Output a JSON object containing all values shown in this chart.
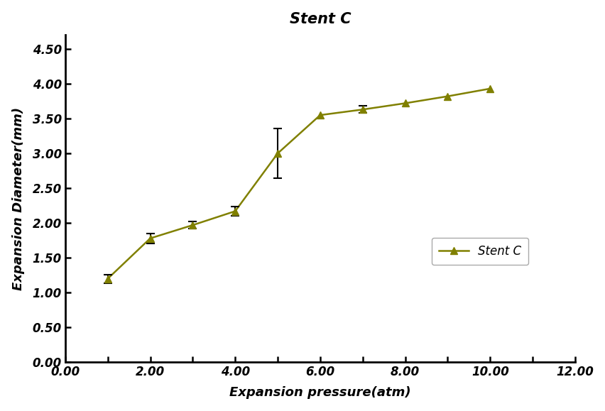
{
  "title": "Stent C",
  "xlabel": "Expansion pressure(atm)",
  "ylabel": "Expansion Diameter(mm)",
  "x": [
    1,
    2,
    3,
    4,
    5,
    6,
    7,
    8,
    9,
    10
  ],
  "y": [
    1.2,
    1.78,
    1.97,
    2.17,
    3.0,
    3.55,
    3.63,
    3.72,
    3.82,
    3.93
  ],
  "yerr": [
    0.06,
    0.07,
    0.05,
    0.07,
    0.36,
    0.0,
    0.05,
    0.0,
    0.0,
    0.0
  ],
  "line_color": "#808000",
  "marker": "^",
  "markersize": 7,
  "legend_label": "Stent C",
  "xlim": [
    0,
    12
  ],
  "ylim": [
    0,
    4.7
  ],
  "xticks": [
    0.0,
    1.0,
    2.0,
    3.0,
    4.0,
    5.0,
    6.0,
    7.0,
    8.0,
    9.0,
    10.0,
    11.0,
    12.0
  ],
  "xtick_labels": [
    "0.00",
    "",
    "2.00",
    "",
    "4.00",
    "",
    "6.00",
    "",
    "8.00",
    "",
    "10.00",
    "",
    "12.00"
  ],
  "yticks": [
    0.0,
    0.5,
    1.0,
    1.5,
    2.0,
    2.5,
    3.0,
    3.5,
    4.0,
    4.5
  ],
  "ytick_labels": [
    "0.00",
    "0.50",
    "1.00",
    "1.50",
    "2.00",
    "2.50",
    "3.00",
    "3.50",
    "4.00",
    "4.50"
  ],
  "title_fontsize": 15,
  "axis_label_fontsize": 13,
  "tick_fontsize": 12,
  "legend_fontsize": 12,
  "background_color": "#ffffff"
}
